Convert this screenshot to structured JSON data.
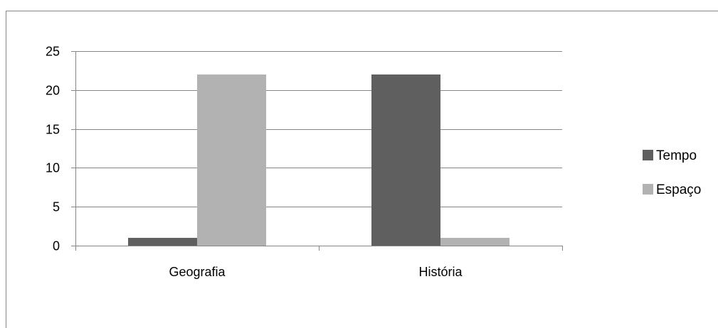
{
  "chart_data": {
    "type": "bar",
    "title": "",
    "xlabel": "",
    "ylabel": "",
    "categories": [
      "Geografia",
      "História"
    ],
    "series": [
      {
        "name": "Tempo",
        "values": [
          1,
          22
        ],
        "color": "#5f5f5f"
      },
      {
        "name": "Espaço",
        "values": [
          22,
          1
        ],
        "color": "#b2b2b2"
      }
    ],
    "ylim": [
      0,
      25
    ],
    "yticks": [
      0,
      5,
      10,
      15,
      20,
      25
    ],
    "grid": true,
    "gridline_color": "#868686",
    "axis_color": "#868686",
    "frame_color": "#868686",
    "legend_position": "right"
  }
}
